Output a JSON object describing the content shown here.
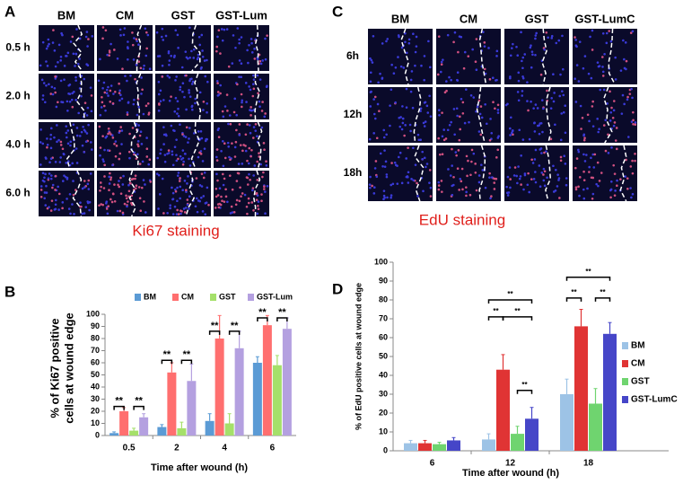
{
  "panels": [
    {
      "letter": "A",
      "columns": [
        "BM",
        "CM",
        "GST",
        "GST-Lum"
      ],
      "rows": [
        "0.5 h",
        "2.0 h",
        "4.0 h",
        "6.0 h"
      ],
      "caption": "Ki67 staining"
    },
    {
      "letter": "C",
      "columns": [
        "BM",
        "CM",
        "GST",
        "GST-LumC"
      ],
      "rows": [
        "6h",
        "12h",
        "18h"
      ],
      "caption": "EdU staining"
    }
  ],
  "chart_data": [
    {
      "type": "bar",
      "letter": "B",
      "y_label": [
        "% of Ki67 positive",
        "cells at wound edge"
      ],
      "x_label": "Time after wound (h)",
      "categories": [
        "0.5",
        "2",
        "4",
        "6"
      ],
      "ylim": [
        0,
        100
      ],
      "yticks": [
        0,
        10,
        20,
        30,
        40,
        50,
        60,
        70,
        80,
        90,
        100
      ],
      "legend": "top",
      "series": [
        {
          "name": "BM",
          "color": "#5b9bd5",
          "values": [
            2,
            7,
            12,
            60
          ],
          "errors": [
            1,
            2,
            6,
            5
          ]
        },
        {
          "name": "CM",
          "color": "#ff6f6f",
          "values": [
            20,
            52,
            80,
            91
          ],
          "errors": [
            3,
            8,
            19,
            8
          ]
        },
        {
          "name": "GST",
          "color": "#a5e06a",
          "values": [
            4,
            6,
            10,
            58
          ],
          "errors": [
            2,
            5,
            8,
            8
          ]
        },
        {
          "name": "GST-Lum",
          "color": "#b4a0e0",
          "values": [
            15,
            45,
            72,
            88
          ],
          "errors": [
            3,
            14,
            14,
            9
          ]
        }
      ],
      "significance": [
        {
          "label": "**",
          "category": "0.5",
          "from": "BM",
          "to": "CM",
          "y": 24
        },
        {
          "label": "**",
          "category": "0.5",
          "from": "GST",
          "to": "GST-Lum",
          "y": 24
        },
        {
          "label": "**",
          "category": "2",
          "from": "BM",
          "to": "CM",
          "y": 62
        },
        {
          "label": "**",
          "category": "2",
          "from": "GST",
          "to": "GST-Lum",
          "y": 62
        },
        {
          "label": "**",
          "category": "4",
          "from": "BM",
          "to": "CM",
          "y": 86
        },
        {
          "label": "**",
          "category": "4",
          "from": "GST",
          "to": "GST-Lum",
          "y": 86
        },
        {
          "label": "**",
          "category": "6",
          "from": "BM",
          "to": "CM",
          "y": 97
        },
        {
          "label": "**",
          "category": "6",
          "from": "GST",
          "to": "GST-Lum",
          "y": 97
        }
      ]
    },
    {
      "type": "bar",
      "letter": "D",
      "y_label": [
        "% of EdU positive cells at wound edge"
      ],
      "x_label": "Time after wound (h)",
      "categories": [
        "6",
        "12",
        "18"
      ],
      "ylim": [
        0,
        100
      ],
      "yticks": [
        0,
        10,
        20,
        30,
        40,
        50,
        60,
        70,
        80,
        90,
        100
      ],
      "legend": "right",
      "series": [
        {
          "name": "BM",
          "color": "#9dc3e6",
          "values": [
            4,
            6,
            30
          ],
          "errors": [
            1.5,
            3,
            8
          ]
        },
        {
          "name": "CM",
          "color": "#e03434",
          "values": [
            4,
            43,
            66
          ],
          "errors": [
            1.5,
            8,
            9
          ]
        },
        {
          "name": "GST",
          "color": "#6fd46f",
          "values": [
            3.5,
            9,
            25
          ],
          "errors": [
            1,
            4,
            8
          ]
        },
        {
          "name": "GST-LumC",
          "color": "#4646c8",
          "values": [
            5.5,
            17,
            62
          ],
          "errors": [
            1.5,
            6,
            6
          ]
        }
      ],
      "significance": [
        {
          "label": "**",
          "category": "12",
          "from": "BM",
          "to": "CM",
          "y": 71
        },
        {
          "label": "**",
          "category": "12",
          "from": "CM",
          "to": "GST-LumC",
          "y": 71
        },
        {
          "label": "**",
          "category": "12",
          "from": "BM",
          "to": "GST-LumC",
          "y": 80
        },
        {
          "label": "**",
          "category": "12",
          "from": "GST",
          "to": "GST-LumC",
          "y": 32
        },
        {
          "label": "**",
          "category": "18",
          "from": "BM",
          "to": "CM",
          "y": 81
        },
        {
          "label": "**",
          "category": "18",
          "from": "GST",
          "to": "GST-LumC",
          "y": 81
        },
        {
          "label": "**",
          "category": "18",
          "from": "BM",
          "to": "GST-LumC",
          "y": 92
        }
      ]
    }
  ]
}
